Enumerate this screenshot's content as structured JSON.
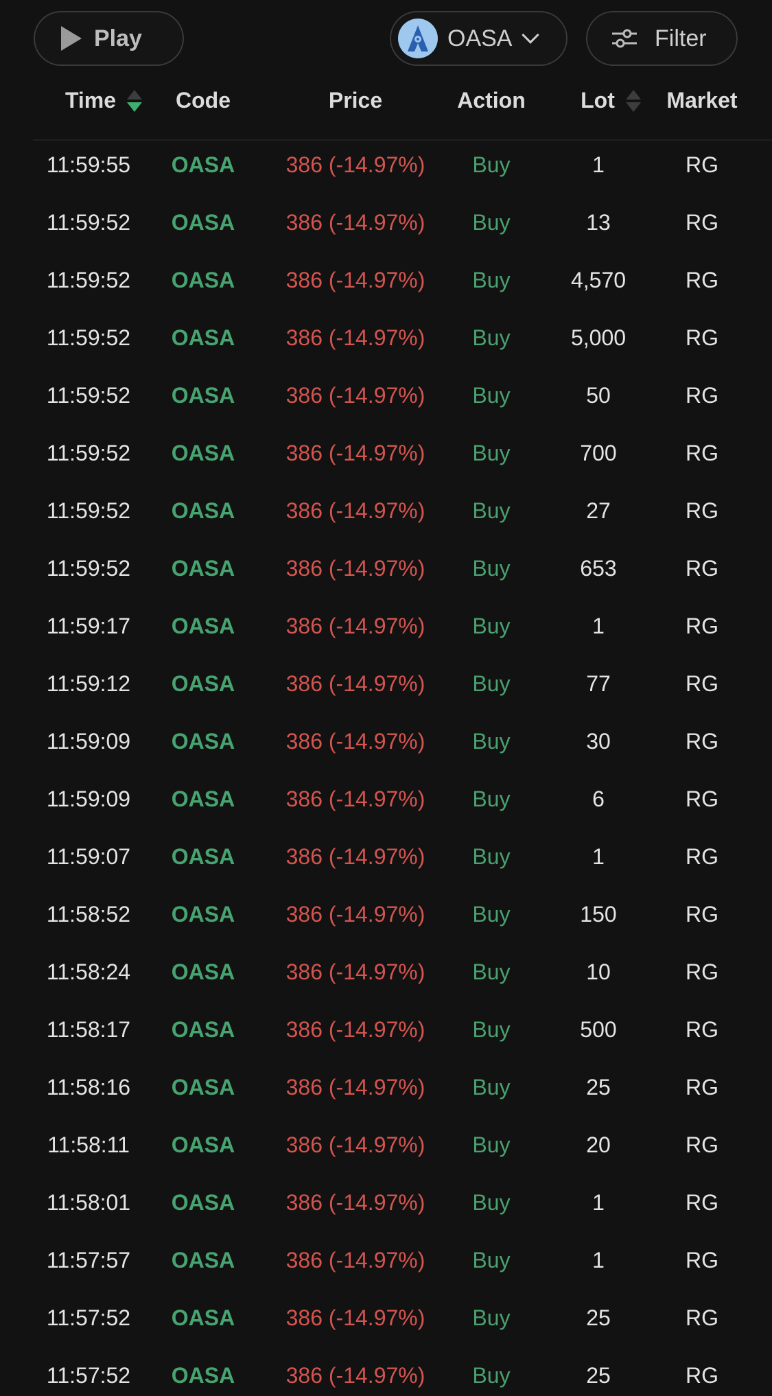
{
  "toolbar": {
    "play_label": "Play",
    "stock_label": "OASA",
    "filter_label": "Filter"
  },
  "colors": {
    "background": "#121212",
    "buy": "#4aa06f",
    "price_down": "#d4544f",
    "sort_active": "#3fae6f"
  },
  "columns": {
    "time": "Time",
    "code": "Code",
    "price": "Price",
    "action": "Action",
    "lot": "Lot",
    "market": "Market"
  },
  "sort": {
    "column": "Time",
    "direction": "descending"
  },
  "rows": [
    {
      "time": "11:59:55",
      "code": "OASA",
      "price": "386 (-14.97%)",
      "action": "Buy",
      "lot": "1",
      "market": "RG"
    },
    {
      "time": "11:59:52",
      "code": "OASA",
      "price": "386 (-14.97%)",
      "action": "Buy",
      "lot": "13",
      "market": "RG"
    },
    {
      "time": "11:59:52",
      "code": "OASA",
      "price": "386 (-14.97%)",
      "action": "Buy",
      "lot": "4,570",
      "market": "RG"
    },
    {
      "time": "11:59:52",
      "code": "OASA",
      "price": "386 (-14.97%)",
      "action": "Buy",
      "lot": "5,000",
      "market": "RG"
    },
    {
      "time": "11:59:52",
      "code": "OASA",
      "price": "386 (-14.97%)",
      "action": "Buy",
      "lot": "50",
      "market": "RG"
    },
    {
      "time": "11:59:52",
      "code": "OASA",
      "price": "386 (-14.97%)",
      "action": "Buy",
      "lot": "700",
      "market": "RG"
    },
    {
      "time": "11:59:52",
      "code": "OASA",
      "price": "386 (-14.97%)",
      "action": "Buy",
      "lot": "27",
      "market": "RG"
    },
    {
      "time": "11:59:52",
      "code": "OASA",
      "price": "386 (-14.97%)",
      "action": "Buy",
      "lot": "653",
      "market": "RG"
    },
    {
      "time": "11:59:17",
      "code": "OASA",
      "price": "386 (-14.97%)",
      "action": "Buy",
      "lot": "1",
      "market": "RG"
    },
    {
      "time": "11:59:12",
      "code": "OASA",
      "price": "386 (-14.97%)",
      "action": "Buy",
      "lot": "77",
      "market": "RG"
    },
    {
      "time": "11:59:09",
      "code": "OASA",
      "price": "386 (-14.97%)",
      "action": "Buy",
      "lot": "30",
      "market": "RG"
    },
    {
      "time": "11:59:09",
      "code": "OASA",
      "price": "386 (-14.97%)",
      "action": "Buy",
      "lot": "6",
      "market": "RG"
    },
    {
      "time": "11:59:07",
      "code": "OASA",
      "price": "386 (-14.97%)",
      "action": "Buy",
      "lot": "1",
      "market": "RG"
    },
    {
      "time": "11:58:52",
      "code": "OASA",
      "price": "386 (-14.97%)",
      "action": "Buy",
      "lot": "150",
      "market": "RG"
    },
    {
      "time": "11:58:24",
      "code": "OASA",
      "price": "386 (-14.97%)",
      "action": "Buy",
      "lot": "10",
      "market": "RG"
    },
    {
      "time": "11:58:17",
      "code": "OASA",
      "price": "386 (-14.97%)",
      "action": "Buy",
      "lot": "500",
      "market": "RG"
    },
    {
      "time": "11:58:16",
      "code": "OASA",
      "price": "386 (-14.97%)",
      "action": "Buy",
      "lot": "25",
      "market": "RG"
    },
    {
      "time": "11:58:11",
      "code": "OASA",
      "price": "386 (-14.97%)",
      "action": "Buy",
      "lot": "20",
      "market": "RG"
    },
    {
      "time": "11:58:01",
      "code": "OASA",
      "price": "386 (-14.97%)",
      "action": "Buy",
      "lot": "1",
      "market": "RG"
    },
    {
      "time": "11:57:57",
      "code": "OASA",
      "price": "386 (-14.97%)",
      "action": "Buy",
      "lot": "1",
      "market": "RG"
    },
    {
      "time": "11:57:52",
      "code": "OASA",
      "price": "386 (-14.97%)",
      "action": "Buy",
      "lot": "25",
      "market": "RG"
    },
    {
      "time": "11:57:52",
      "code": "OASA",
      "price": "386 (-14.97%)",
      "action": "Buy",
      "lot": "25",
      "market": "RG"
    }
  ]
}
